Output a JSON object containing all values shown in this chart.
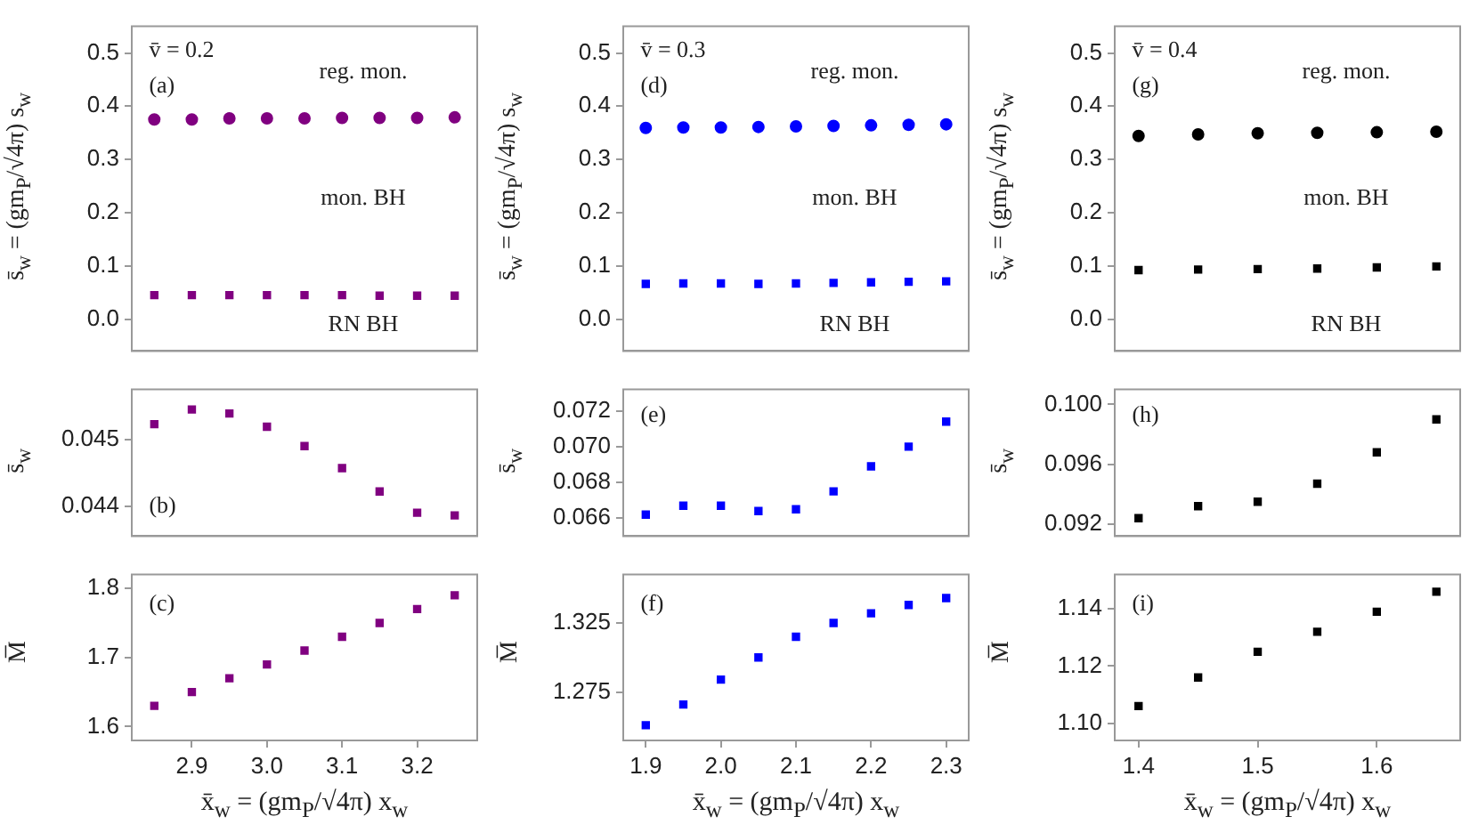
{
  "chart_data": [
    {
      "type": "scatter",
      "x": [
        2.85,
        2.9,
        2.95,
        3.0,
        3.05,
        3.1,
        3.15,
        3.2,
        3.25
      ],
      "series": [
        {
          "color": "#800080",
          "marker": "circle",
          "values": [
            0.375,
            0.375,
            0.377,
            0.377,
            0.377,
            0.378,
            0.378,
            0.378,
            0.379
          ]
        },
        {
          "color": "#800080",
          "marker": "square",
          "values": [
            0.045,
            0.045,
            0.045,
            0.045,
            0.045,
            0.045,
            0.044,
            0.044,
            0.044
          ]
        }
      ],
      "ylabel": "s̄$_{w}$ = (gm$_{P}$/√4π) s$_{w}$",
      "xlim": [
        2.82,
        3.28
      ],
      "ylim": [
        -0.06,
        0.55
      ],
      "yticks": [
        {
          "value": 0,
          "label": "0.0"
        },
        0.1,
        0.2,
        0.3,
        0.4,
        0.5
      ],
      "tick_labels": "y",
      "annotations": [
        "v̄ = 0.2",
        "(a)",
        "reg. mon.",
        "mon. BH",
        "RN BH"
      ]
    },
    {
      "type": "scatter",
      "x": [
        1.9,
        1.95,
        2.0,
        2.05,
        2.1,
        2.15,
        2.2,
        2.25,
        2.3
      ],
      "series": [
        {
          "color": "#0000ff",
          "marker": "circle",
          "values": [
            0.359,
            0.36,
            0.36,
            0.361,
            0.362,
            0.363,
            0.364,
            0.365,
            0.366
          ]
        },
        {
          "color": "#0000ff",
          "marker": "square",
          "values": [
            0.066,
            0.067,
            0.067,
            0.066,
            0.067,
            0.068,
            0.069,
            0.07,
            0.071
          ]
        }
      ],
      "ylabel": "s̄$_{w}$ = (gm$_{P}$/√4π) s$_{w}$",
      "xlim": [
        1.87,
        2.33
      ],
      "ylim": [
        -0.06,
        0.55
      ],
      "yticks": [
        {
          "value": 0,
          "label": "0.0"
        },
        0.1,
        0.2,
        0.3,
        0.4,
        0.5
      ],
      "tick_labels": "y",
      "annotations": [
        "v̄ = 0.3",
        "(d)",
        "reg. mon.",
        "mon. BH",
        "RN BH"
      ]
    },
    {
      "type": "scatter",
      "x": [
        1.4,
        1.45,
        1.5,
        1.55,
        1.6,
        1.65
      ],
      "series": [
        {
          "color": "#000000",
          "marker": "circle",
          "values": [
            0.344,
            0.347,
            0.349,
            0.35,
            0.351,
            0.352
          ]
        },
        {
          "color": "#000000",
          "marker": "square",
          "values": [
            0.092,
            0.093,
            0.094,
            0.095,
            0.097,
            0.099
          ]
        }
      ],
      "ylabel": "s̄$_{w}$ = (gm$_{P}$/√4π) s$_{w}$",
      "xlim": [
        1.38,
        1.67
      ],
      "ylim": [
        -0.06,
        0.55
      ],
      "yticks": [
        {
          "value": 0,
          "label": "0.0"
        },
        0.1,
        0.2,
        0.3,
        0.4,
        0.5
      ],
      "tick_labels": "y",
      "annotations": [
        "v̄ = 0.4",
        "(g)",
        "reg. mon.",
        "mon. BH",
        "RN BH"
      ]
    },
    {
      "type": "scatter",
      "x": [
        2.85,
        2.9,
        2.95,
        3.0,
        3.05,
        3.1,
        3.15,
        3.2,
        3.25
      ],
      "series": [
        {
          "color": "#800080",
          "marker": "square",
          "values": [
            0.04523,
            0.04545,
            0.04539,
            0.04519,
            0.0449,
            0.04457,
            0.04422,
            0.0439,
            0.04386
          ]
        }
      ],
      "ylabel": "s̄$_{w}$",
      "xlim": [
        2.82,
        3.28
      ],
      "ylim": [
        0.04355,
        0.04575
      ],
      "yticks": [
        0.044,
        0.045
      ],
      "tick_labels": "y",
      "annotations": [
        "(b)"
      ]
    },
    {
      "type": "scatter",
      "x": [
        1.9,
        1.95,
        2.0,
        2.05,
        2.1,
        2.15,
        2.2,
        2.25,
        2.3
      ],
      "series": [
        {
          "color": "#0000ff",
          "marker": "square",
          "values": [
            0.0662,
            0.0667,
            0.0667,
            0.0664,
            0.0665,
            0.0675,
            0.0689,
            0.07,
            0.0714
          ]
        }
      ],
      "ylabel": "s̄$_{w}$",
      "xlim": [
        1.87,
        2.33
      ],
      "ylim": [
        0.065,
        0.0732
      ],
      "yticks": [
        0.066,
        0.068,
        {
          "value": 0.07,
          "label": "0.070"
        },
        0.072
      ],
      "tick_labels": "y",
      "annotations": [
        "(e)"
      ]
    },
    {
      "type": "scatter",
      "x": [
        1.4,
        1.45,
        1.5,
        1.55,
        1.6,
        1.65
      ],
      "series": [
        {
          "color": "#000000",
          "marker": "square",
          "values": [
            0.0924,
            0.0932,
            0.0935,
            0.0947,
            0.0968,
            0.099
          ]
        }
      ],
      "ylabel": "s̄$_{w}$",
      "xlim": [
        1.38,
        1.67
      ],
      "ylim": [
        0.0912,
        0.101
      ],
      "yticks": [
        0.092,
        0.096,
        {
          "value": 0.1,
          "label": "0.100"
        }
      ],
      "tick_labels": "y",
      "annotations": [
        "(h)"
      ]
    },
    {
      "type": "scatter",
      "x": [
        2.85,
        2.9,
        2.95,
        3.0,
        3.05,
        3.1,
        3.15,
        3.2,
        3.25
      ],
      "series": [
        {
          "color": "#800080",
          "marker": "square",
          "values": [
            1.63,
            1.65,
            1.67,
            1.69,
            1.71,
            1.73,
            1.75,
            1.77,
            1.79
          ]
        }
      ],
      "ylabel": "M̅",
      "xlabel": "x̄$_{w}$ = (gm$_{P}$/√4π) x$_{w}$",
      "xlim": [
        2.82,
        3.28
      ],
      "xticks": [
        2.9,
        {
          "value": 3.0,
          "label": "3.0"
        },
        3.1,
        3.2
      ],
      "ylim": [
        1.58,
        1.82
      ],
      "yticks": [
        1.6,
        1.7,
        1.8
      ],
      "annotations": [
        "(c)"
      ]
    },
    {
      "type": "scatter",
      "x": [
        1.9,
        1.95,
        2.0,
        2.05,
        2.1,
        2.15,
        2.2,
        2.25,
        2.3
      ],
      "series": [
        {
          "color": "#0000ff",
          "marker": "square",
          "values": [
            1.251,
            1.266,
            1.284,
            1.3,
            1.315,
            1.325,
            1.332,
            1.338,
            1.343
          ]
        }
      ],
      "ylabel": "M̅",
      "xlabel": "x̄$_{w}$ = (gm$_{P}$/√4π) x$_{w}$",
      "xlim": [
        1.87,
        2.33
      ],
      "xticks": [
        1.9,
        {
          "value": 2.0,
          "label": "2.0"
        },
        2.1,
        2.2,
        2.3
      ],
      "ylim": [
        1.24,
        1.36
      ],
      "yticks": [
        1.275,
        1.325
      ],
      "annotations": [
        "(f)"
      ]
    },
    {
      "type": "scatter",
      "x": [
        1.4,
        1.45,
        1.5,
        1.55,
        1.6,
        1.65
      ],
      "series": [
        {
          "color": "#000000",
          "marker": "square",
          "values": [
            1.106,
            1.116,
            1.125,
            1.132,
            1.139,
            1.146
          ]
        }
      ],
      "ylabel": "M̅",
      "xlabel": "x̄$_{w}$ = (gm$_{P}$/√4π) x$_{w}$",
      "xlim": [
        1.38,
        1.67
      ],
      "xticks": [
        1.4,
        1.5,
        1.6
      ],
      "ylim": [
        1.094,
        1.152
      ],
      "yticks": [
        {
          "value": 1.1,
          "label": "1.10"
        },
        1.12,
        1.14
      ],
      "annotations": [
        "(i)"
      ]
    }
  ]
}
